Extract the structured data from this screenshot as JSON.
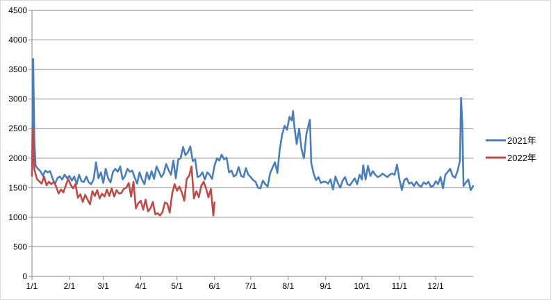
{
  "chart_data": {
    "type": "line",
    "title": "",
    "xlabel": "",
    "ylabel": "",
    "ylim": [
      0,
      4500
    ],
    "yticks": [
      0,
      500,
      1000,
      1500,
      2000,
      2500,
      3000,
      3500,
      4000,
      4500
    ],
    "x_unit": "day-of-year",
    "xlim": [
      1,
      366
    ],
    "xticks": [
      {
        "label": "1/1",
        "day": 1
      },
      {
        "label": "2/1",
        "day": 32
      },
      {
        "label": "3/1",
        "day": 60
      },
      {
        "label": "4/1",
        "day": 91
      },
      {
        "label": "5/1",
        "day": 121
      },
      {
        "label": "6/1",
        "day": 152
      },
      {
        "label": "7/1",
        "day": 182
      },
      {
        "label": "8/1",
        "day": 213
      },
      {
        "label": "9/1",
        "day": 244
      },
      {
        "label": "10/1",
        "day": 274
      },
      {
        "label": "11/1",
        "day": 305
      },
      {
        "label": "12/1",
        "day": 335
      }
    ],
    "grid": "horizontal",
    "legend_position": "right",
    "series": [
      {
        "name": "2021年",
        "color": "#4a7ebb",
        "points": [
          [
            1,
            1720
          ],
          [
            2,
            3680
          ],
          [
            3,
            2300
          ],
          [
            4,
            1870
          ],
          [
            6,
            1820
          ],
          [
            8,
            1780
          ],
          [
            10,
            1700
          ],
          [
            12,
            1790
          ],
          [
            14,
            1760
          ],
          [
            16,
            1780
          ],
          [
            18,
            1660
          ],
          [
            20,
            1560
          ],
          [
            22,
            1660
          ],
          [
            24,
            1690
          ],
          [
            26,
            1640
          ],
          [
            28,
            1720
          ],
          [
            30,
            1660
          ],
          [
            32,
            1700
          ],
          [
            34,
            1620
          ],
          [
            36,
            1690
          ],
          [
            38,
            1560
          ],
          [
            40,
            1720
          ],
          [
            42,
            1610
          ],
          [
            44,
            1600
          ],
          [
            46,
            1690
          ],
          [
            48,
            1590
          ],
          [
            50,
            1560
          ],
          [
            52,
            1640
          ],
          [
            54,
            1930
          ],
          [
            56,
            1660
          ],
          [
            58,
            1760
          ],
          [
            60,
            1580
          ],
          [
            62,
            1820
          ],
          [
            64,
            1660
          ],
          [
            66,
            1590
          ],
          [
            68,
            1770
          ],
          [
            70,
            1820
          ],
          [
            72,
            1770
          ],
          [
            74,
            1860
          ],
          [
            76,
            1640
          ],
          [
            78,
            1700
          ],
          [
            80,
            1820
          ],
          [
            82,
            1770
          ],
          [
            84,
            1790
          ],
          [
            86,
            1670
          ],
          [
            88,
            1570
          ],
          [
            90,
            1760
          ],
          [
            92,
            1640
          ],
          [
            94,
            1560
          ],
          [
            96,
            1760
          ],
          [
            98,
            1640
          ],
          [
            100,
            1780
          ],
          [
            102,
            1650
          ],
          [
            104,
            1860
          ],
          [
            106,
            1770
          ],
          [
            108,
            1680
          ],
          [
            110,
            1740
          ],
          [
            112,
            1900
          ],
          [
            114,
            1800
          ],
          [
            116,
            1720
          ],
          [
            118,
            1960
          ],
          [
            120,
            1660
          ],
          [
            122,
            1980
          ],
          [
            124,
            2000
          ],
          [
            126,
            2190
          ],
          [
            128,
            2050
          ],
          [
            130,
            2100
          ],
          [
            132,
            2200
          ],
          [
            134,
            1950
          ],
          [
            136,
            1980
          ],
          [
            138,
            1680
          ],
          [
            140,
            1700
          ],
          [
            142,
            1760
          ],
          [
            144,
            1640
          ],
          [
            146,
            1760
          ],
          [
            148,
            1720
          ],
          [
            150,
            1650
          ],
          [
            152,
            1870
          ],
          [
            154,
            2000
          ],
          [
            156,
            1960
          ],
          [
            158,
            2060
          ],
          [
            160,
            1980
          ],
          [
            162,
            2010
          ],
          [
            164,
            1760
          ],
          [
            166,
            1790
          ],
          [
            168,
            1690
          ],
          [
            170,
            1720
          ],
          [
            172,
            1850
          ],
          [
            174,
            1700
          ],
          [
            176,
            1680
          ],
          [
            178,
            1830
          ],
          [
            180,
            1720
          ],
          [
            182,
            1680
          ],
          [
            184,
            1630
          ],
          [
            186,
            1600
          ],
          [
            188,
            1500
          ],
          [
            190,
            1490
          ],
          [
            192,
            1620
          ],
          [
            194,
            1560
          ],
          [
            196,
            1520
          ],
          [
            198,
            1740
          ],
          [
            200,
            1840
          ],
          [
            202,
            1930
          ],
          [
            204,
            1750
          ],
          [
            206,
            2150
          ],
          [
            208,
            2400
          ],
          [
            210,
            2550
          ],
          [
            212,
            2480
          ],
          [
            214,
            2700
          ],
          [
            216,
            2640
          ],
          [
            217,
            2800
          ],
          [
            218,
            2550
          ],
          [
            220,
            2240
          ],
          [
            222,
            2500
          ],
          [
            224,
            2150
          ],
          [
            226,
            2000
          ],
          [
            228,
            2400
          ],
          [
            230,
            2580
          ],
          [
            231,
            2650
          ],
          [
            232,
            1920
          ],
          [
            234,
            1740
          ],
          [
            236,
            1630
          ],
          [
            238,
            1680
          ],
          [
            240,
            1580
          ],
          [
            242,
            1600
          ],
          [
            244,
            1600
          ],
          [
            246,
            1570
          ],
          [
            248,
            1640
          ],
          [
            250,
            1470
          ],
          [
            252,
            1690
          ],
          [
            254,
            1580
          ],
          [
            256,
            1500
          ],
          [
            258,
            1620
          ],
          [
            260,
            1680
          ],
          [
            262,
            1560
          ],
          [
            264,
            1540
          ],
          [
            266,
            1600
          ],
          [
            268,
            1660
          ],
          [
            270,
            1560
          ],
          [
            272,
            1720
          ],
          [
            274,
            1640
          ],
          [
            275,
            1880
          ],
          [
            277,
            1640
          ],
          [
            279,
            1870
          ],
          [
            281,
            1700
          ],
          [
            283,
            1780
          ],
          [
            285,
            1720
          ],
          [
            287,
            1680
          ],
          [
            289,
            1700
          ],
          [
            291,
            1740
          ],
          [
            293,
            1710
          ],
          [
            295,
            1680
          ],
          [
            297,
            1720
          ],
          [
            299,
            1740
          ],
          [
            301,
            1720
          ],
          [
            303,
            1890
          ],
          [
            305,
            1640
          ],
          [
            307,
            1460
          ],
          [
            309,
            1630
          ],
          [
            311,
            1660
          ],
          [
            313,
            1570
          ],
          [
            315,
            1590
          ],
          [
            317,
            1530
          ],
          [
            319,
            1600
          ],
          [
            321,
            1540
          ],
          [
            323,
            1520
          ],
          [
            325,
            1590
          ],
          [
            327,
            1560
          ],
          [
            329,
            1600
          ],
          [
            331,
            1520
          ],
          [
            333,
            1530
          ],
          [
            335,
            1610
          ],
          [
            337,
            1560
          ],
          [
            339,
            1680
          ],
          [
            341,
            1490
          ],
          [
            343,
            1720
          ],
          [
            345,
            1770
          ],
          [
            347,
            1820
          ],
          [
            349,
            1700
          ],
          [
            351,
            1670
          ],
          [
            353,
            1780
          ],
          [
            355,
            1950
          ],
          [
            356,
            3020
          ],
          [
            357,
            2600
          ],
          [
            358,
            1530
          ],
          [
            360,
            1590
          ],
          [
            362,
            1640
          ],
          [
            364,
            1460
          ],
          [
            366,
            1530
          ]
        ]
      },
      {
        "name": "2022年",
        "color": "#be4b48",
        "points": [
          [
            1,
            1700
          ],
          [
            2,
            2500
          ],
          [
            3,
            1810
          ],
          [
            5,
            1650
          ],
          [
            7,
            1610
          ],
          [
            9,
            1570
          ],
          [
            11,
            1690
          ],
          [
            13,
            1540
          ],
          [
            15,
            1600
          ],
          [
            17,
            1560
          ],
          [
            19,
            1600
          ],
          [
            21,
            1520
          ],
          [
            23,
            1400
          ],
          [
            25,
            1470
          ],
          [
            27,
            1420
          ],
          [
            29,
            1540
          ],
          [
            31,
            1650
          ],
          [
            33,
            1550
          ],
          [
            35,
            1490
          ],
          [
            37,
            1560
          ],
          [
            39,
            1330
          ],
          [
            41,
            1390
          ],
          [
            43,
            1260
          ],
          [
            45,
            1380
          ],
          [
            47,
            1300
          ],
          [
            49,
            1220
          ],
          [
            51,
            1440
          ],
          [
            53,
            1360
          ],
          [
            55,
            1460
          ],
          [
            57,
            1320
          ],
          [
            59,
            1400
          ],
          [
            61,
            1350
          ],
          [
            63,
            1470
          ],
          [
            65,
            1360
          ],
          [
            67,
            1490
          ],
          [
            69,
            1350
          ],
          [
            71,
            1460
          ],
          [
            73,
            1400
          ],
          [
            75,
            1410
          ],
          [
            77,
            1480
          ],
          [
            79,
            1500
          ],
          [
            81,
            1580
          ],
          [
            83,
            1350
          ],
          [
            85,
            1600
          ],
          [
            87,
            1150
          ],
          [
            89,
            1240
          ],
          [
            91,
            1280
          ],
          [
            93,
            1130
          ],
          [
            95,
            1300
          ],
          [
            97,
            1100
          ],
          [
            99,
            1150
          ],
          [
            101,
            1260
          ],
          [
            103,
            1050
          ],
          [
            105,
            1070
          ],
          [
            107,
            1030
          ],
          [
            109,
            1090
          ],
          [
            111,
            1250
          ],
          [
            113,
            1230
          ],
          [
            115,
            1080
          ],
          [
            117,
            1400
          ],
          [
            119,
            1560
          ],
          [
            121,
            1450
          ],
          [
            123,
            1520
          ],
          [
            125,
            1420
          ],
          [
            127,
            1280
          ],
          [
            129,
            1650
          ],
          [
            131,
            1700
          ],
          [
            133,
            1860
          ],
          [
            135,
            1320
          ],
          [
            137,
            1440
          ],
          [
            139,
            1340
          ],
          [
            141,
            1530
          ],
          [
            143,
            1600
          ],
          [
            145,
            1490
          ],
          [
            147,
            1340
          ],
          [
            149,
            1480
          ],
          [
            151,
            1030
          ],
          [
            152,
            1250
          ]
        ]
      }
    ]
  }
}
